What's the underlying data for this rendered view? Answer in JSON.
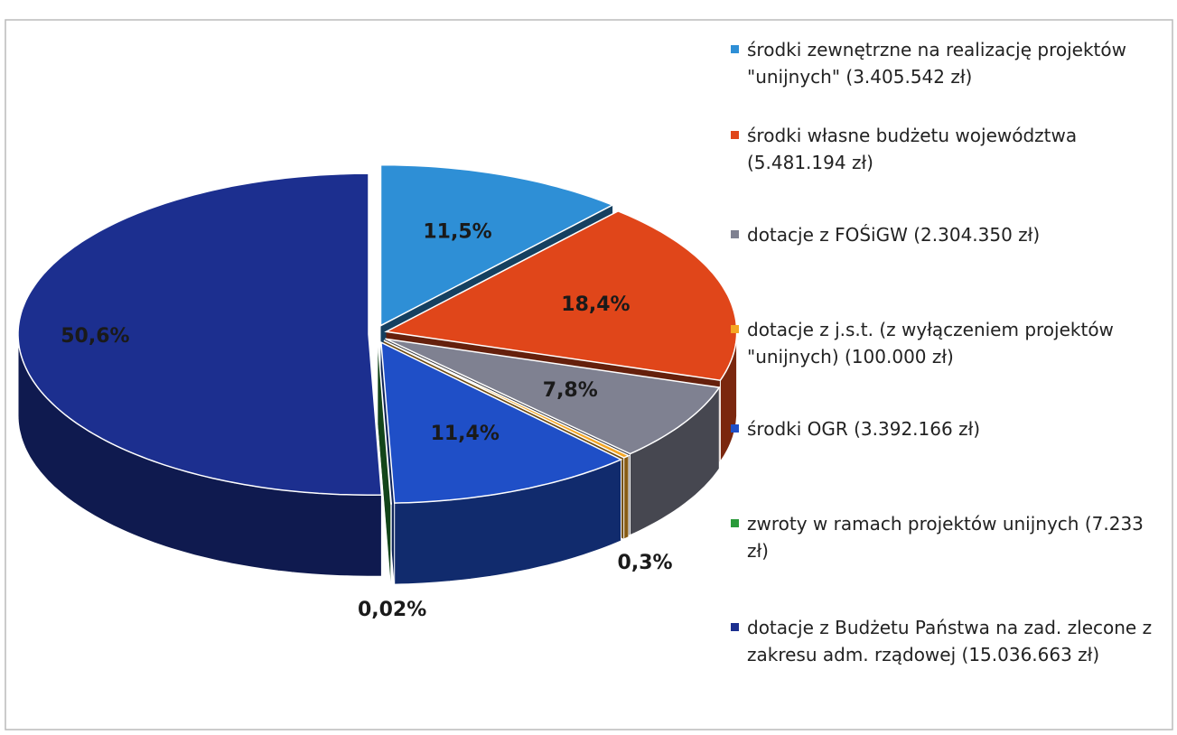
{
  "chart_data": {
    "type": "pie",
    "categories": [
      "środki zewnętrzne na realizację projektów \"unijnych\" (3.405.542 zł)",
      "środki własne budżetu województwa (5.481.194 zł)",
      "dotacje z FOŚiGW (2.304.350 zł)",
      "dotacje z j.s.t. (z wyłączeniem projektów \"unijnych) (100.000 zł)",
      "środki OGR (3.392.166 zł)",
      "zwroty w ramach projektów unijnych (7.233 zł)",
      "dotacje z Budżetu Państwa na zad. zlecone z zakresu adm. rządowej (15.036.663 zł)"
    ],
    "values": [
      11.5,
      18.4,
      7.8,
      0.3,
      11.4,
      0.02,
      50.6
    ],
    "value_labels": [
      "11,5%",
      "18,4%",
      "7,8%",
      "0,3%",
      "11,4%",
      "0,02%",
      "50,6%"
    ],
    "colors": [
      "#2e8fd6",
      "#e0461a",
      "#7f8191",
      "#f5a623",
      "#1f4fc7",
      "#2a9a3a",
      "#1c2f8f"
    ],
    "legend": "right"
  }
}
